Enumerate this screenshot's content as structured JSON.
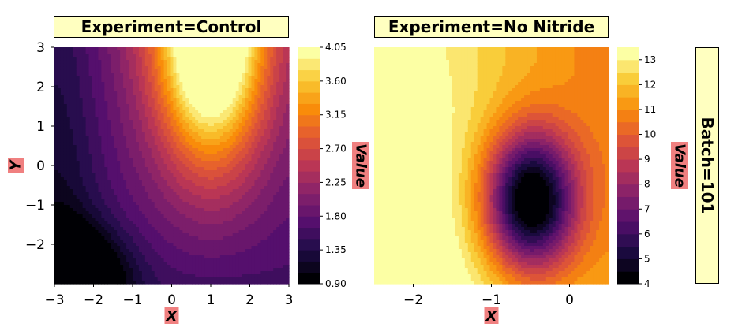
{
  "chart_data": [
    {
      "type": "contour",
      "title": "Experiment=Control",
      "xlabel": "X",
      "ylabel": "Y",
      "xlim": [
        -3,
        3
      ],
      "ylim": [
        -3,
        3
      ],
      "xticks": [
        "−3",
        "−2",
        "−1",
        "0",
        "1",
        "2",
        "3"
      ],
      "yticks": [
        "3",
        "2",
        "1",
        "0",
        "−1",
        "−2"
      ],
      "colorbar": {
        "label": "Value",
        "range": [
          0.9,
          4.05
        ],
        "ticks": [
          "4.05",
          "3.60",
          "3.15",
          "2.70",
          "2.25",
          "1.80",
          "1.35",
          "0.90"
        ],
        "levels": 21
      },
      "colormap": "inferno",
      "features": {
        "maximum": {
          "x": 1,
          "y": 3,
          "value": 4.05
        },
        "minimum": {
          "x": -2.8,
          "y": -2.9,
          "value": 0.9
        }
      }
    },
    {
      "type": "contour",
      "title": "Experiment=No Nitride",
      "xlabel": "X",
      "ylabel": "",
      "xlim": [
        -2.5,
        0.5
      ],
      "ylim": [
        -3,
        3
      ],
      "xticks": [
        "−2",
        "−1",
        "0"
      ],
      "colorbar": {
        "label": "Value",
        "range": [
          4,
          13.5
        ],
        "ticks": [
          "13",
          "12",
          "11",
          "10",
          "9",
          "8",
          "7",
          "6",
          "5",
          "4"
        ],
        "levels": 19
      },
      "colormap": "inferno",
      "features": {
        "minimum": {
          "x": -0.5,
          "y": -1.2,
          "value": 4
        },
        "maximum": {
          "x": -2.5,
          "y": -2.8,
          "value": 13.5
        }
      }
    }
  ],
  "facet_label": "Batch=101",
  "colors": {
    "title_bg": "#ffffc0",
    "axis_label_bg": "#f08080"
  }
}
